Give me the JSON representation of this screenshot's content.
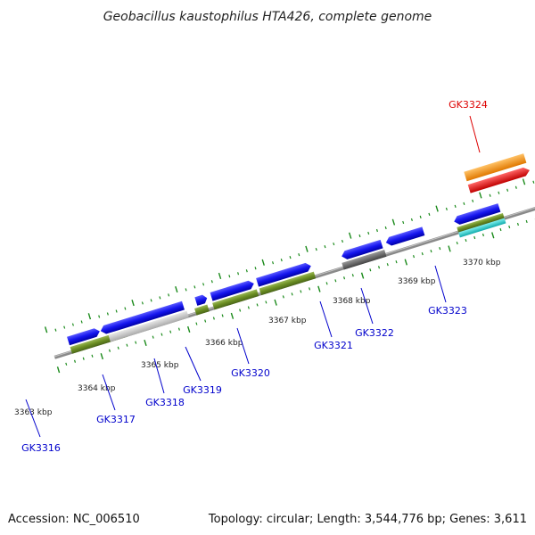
{
  "title": "Geobacillus kaustophilus HTA426, complete genome",
  "footer": {
    "accession": "Accession: NC_006510",
    "summary": "Topology: circular; Length: 3,544,776 bp; Genes: 3,611"
  },
  "kbp_ticks": [
    "3363 kbp",
    "3364 kbp",
    "3365 kbp",
    "3366 kbp",
    "3367 kbp",
    "3368 kbp",
    "3369 kbp",
    "3370 kbp"
  ],
  "genes": [
    {
      "name": "GK3316",
      "color": "#0000cc"
    },
    {
      "name": "GK3317",
      "color": "#0000cc"
    },
    {
      "name": "GK3318",
      "color": "#0000cc"
    },
    {
      "name": "GK3319",
      "color": "#0000cc"
    },
    {
      "name": "GK3320",
      "color": "#0000cc"
    },
    {
      "name": "GK3321",
      "color": "#0000cc"
    },
    {
      "name": "GK3322",
      "color": "#0000cc"
    },
    {
      "name": "GK3323",
      "color": "#0000cc"
    },
    {
      "name": "GK3324",
      "color": "#dd0000"
    }
  ],
  "colors": {
    "backbone": "#8a8a8a",
    "tick_green": "#1a8a1a",
    "cds_blue": "#1515ee",
    "gene_green": "#6b8e23",
    "gray_feature": "#c8c8c8",
    "dark_gray_feature": "#666666",
    "cyan_feature": "#22cccc",
    "orange_feature": "#ff9900",
    "red_feature": "#ff0000"
  }
}
